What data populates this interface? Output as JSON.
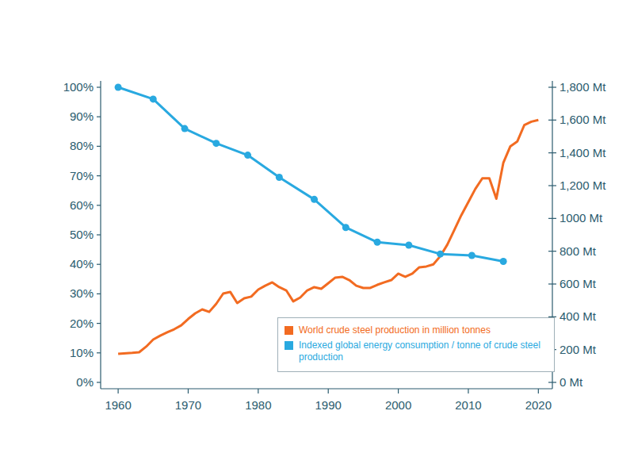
{
  "chart_data": {
    "type": "line",
    "xlim": [
      1957.5,
      2022
    ],
    "xticks": [
      1960,
      1970,
      1980,
      1990,
      2000,
      2010,
      2020
    ],
    "ylim": [
      0,
      100
    ],
    "yticks": [
      {
        "value": 0,
        "label": "0%"
      },
      {
        "value": 10,
        "label": "10%"
      },
      {
        "value": 20,
        "label": "20%"
      },
      {
        "value": 30,
        "label": "30%"
      },
      {
        "value": 40,
        "label": "40%"
      },
      {
        "value": 50,
        "label": "50%"
      },
      {
        "value": 60,
        "label": "60%"
      },
      {
        "value": 70,
        "label": "70%"
      },
      {
        "value": 80,
        "label": "80%"
      },
      {
        "value": 90,
        "label": "90%"
      },
      {
        "value": 100,
        "label": "100%"
      }
    ],
    "y2lim": [
      0,
      1800
    ],
    "y2ticks": [
      {
        "value": 0,
        "label": "0 Mt"
      },
      {
        "value": 200,
        "label": "200 Mt"
      },
      {
        "value": 400,
        "label": "400 Mt"
      },
      {
        "value": 600,
        "label": "600 Mt"
      },
      {
        "value": 800,
        "label": "800 Mt"
      },
      {
        "value": 1000,
        "label": "1000 Mt"
      },
      {
        "value": 1200,
        "label": "1,200 Mt"
      },
      {
        "value": 1400,
        "label": "1,400 Mt"
      },
      {
        "value": 1600,
        "label": "1,600 Mt"
      },
      {
        "value": 1800,
        "label": "1,800 Mt"
      }
    ],
    "grid": false,
    "legend": "lower right",
    "series": [
      {
        "name": "World crude steel production in million tonnes",
        "color": "#f26b21",
        "axis": "y2",
        "marker": "none",
        "x": [
          1960,
          1962,
          1963,
          1964,
          1965,
          1966,
          1967,
          1968,
          1969,
          1970,
          1971,
          1972,
          1973,
          1974,
          1975,
          1976,
          1977,
          1978,
          1979,
          1980,
          1981,
          1982,
          1983,
          1984,
          1985,
          1986,
          1987,
          1988,
          1989,
          1990,
          1991,
          1992,
          1993,
          1994,
          1995,
          1996,
          1997,
          1998,
          1999,
          2000,
          2001,
          2002,
          2003,
          2004,
          2005,
          2006,
          2007,
          2008,
          2009,
          2010,
          2011,
          2012,
          2013,
          2014,
          2015,
          2016,
          2017,
          2018,
          2019,
          2020
        ],
        "values": [
          174,
          180,
          184,
          218,
          261,
          285,
          305,
          324,
          348,
          387,
          421,
          445,
          430,
          479,
          542,
          552,
          484,
          513,
          523,
          566,
          590,
          610,
          581,
          561,
          494,
          518,
          561,
          581,
          571,
          605,
          639,
          644,
          624,
          590,
          576,
          576,
          595,
          610,
          624,
          663,
          644,
          663,
          702,
          707,
          720,
          770,
          840,
          930,
          1020,
          1100,
          1180,
          1245,
          1245,
          1120,
          1340,
          1440,
          1470,
          1570,
          1590,
          1600
        ]
      },
      {
        "name": "Indexed global energy consumption / tonne of crude steel production",
        "color": "#29a9e0",
        "axis": "y",
        "marker": "circle",
        "x": [
          1960,
          1965,
          1969.5,
          1974,
          1978.5,
          1983,
          1988,
          1992.5,
          1997,
          2001.5,
          2006,
          2010.5,
          2015
        ],
        "values": [
          100,
          96,
          86,
          81,
          77,
          69.5,
          62,
          52.5,
          47.5,
          46.5,
          43.5,
          43,
          41
        ]
      }
    ]
  }
}
